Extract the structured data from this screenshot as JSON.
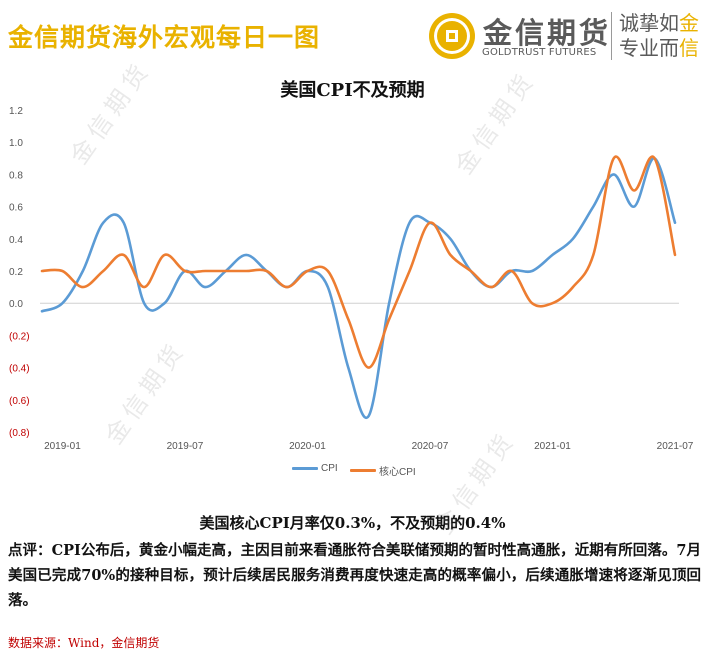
{
  "header": {
    "title": "金信期货海外宏观每日一图",
    "logo_cn": "金信期货",
    "logo_en": "GOLDTRUST FUTURES",
    "slogan_line1_prefix": "诚挚如",
    "slogan_line1_highlight": "金",
    "slogan_line2_prefix": "专业而",
    "slogan_line2_highlight": "信"
  },
  "watermark": "金信期货",
  "chart_data": {
    "type": "line",
    "title": "美国CPI不及预期",
    "x_tick_labels": [
      "2019-01",
      "2019-07",
      "2020-01",
      "2020-07",
      "2021-01",
      "2021-07"
    ],
    "y_tick_labels": [
      "1.2",
      "1.0",
      "0.8",
      "0.6",
      "0.4",
      "0.2",
      "0.0",
      "(0.2)",
      "(0.4)",
      "(0.6)",
      "(0.8)"
    ],
    "ylim": [
      -0.8,
      1.2
    ],
    "grid": false,
    "legend_position": "bottom",
    "x": [
      "2018-12",
      "2019-01",
      "2019-02",
      "2019-03",
      "2019-04",
      "2019-05",
      "2019-06",
      "2019-07",
      "2019-08",
      "2019-09",
      "2019-10",
      "2019-11",
      "2019-12",
      "2020-01",
      "2020-02",
      "2020-03",
      "2020-04",
      "2020-05",
      "2020-06",
      "2020-07",
      "2020-08",
      "2020-09",
      "2020-10",
      "2020-11",
      "2020-12",
      "2021-01",
      "2021-02",
      "2021-03",
      "2021-04",
      "2021-05",
      "2021-06",
      "2021-07"
    ],
    "series": [
      {
        "name": "CPI",
        "color": "#5b9bd5",
        "values": [
          -0.05,
          0.0,
          0.2,
          0.5,
          0.5,
          0.0,
          0.0,
          0.2,
          0.1,
          0.2,
          0.3,
          0.2,
          0.1,
          0.2,
          0.1,
          -0.4,
          -0.7,
          0.0,
          0.5,
          0.5,
          0.4,
          0.2,
          0.1,
          0.2,
          0.2,
          0.3,
          0.4,
          0.6,
          0.8,
          0.6,
          0.9,
          0.5
        ]
      },
      {
        "name": "核心CPI",
        "color": "#ed7d31",
        "values": [
          0.2,
          0.2,
          0.1,
          0.2,
          0.3,
          0.1,
          0.3,
          0.2,
          0.2,
          0.2,
          0.2,
          0.2,
          0.1,
          0.2,
          0.2,
          -0.1,
          -0.4,
          -0.1,
          0.2,
          0.5,
          0.3,
          0.2,
          0.1,
          0.2,
          0.0,
          0.0,
          0.1,
          0.3,
          0.9,
          0.7,
          0.9,
          0.3
        ]
      }
    ]
  },
  "summary": "美国核心CPI月率仅0.3%，不及预期的0.4%",
  "comment": "点评：CPI公布后，黄金小幅走高，主因目前来看通胀符合美联储预期的暂时性高通胀，近期有所回落。7月美国已完成70%的接种目标，预计后续居民服务消费再度快速走高的概率偏小，后续通胀增速将逐渐见顶回落。",
  "source": "数据来源：Wind，金信期货"
}
